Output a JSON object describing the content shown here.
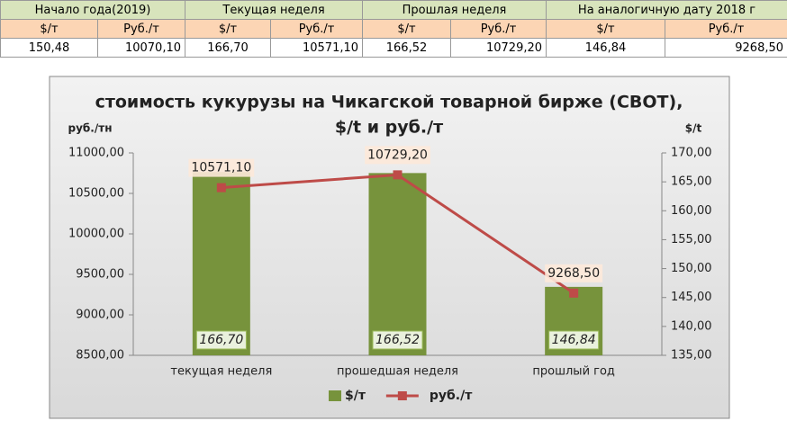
{
  "table": {
    "header": [
      "Начало года(2019)",
      "Текущая неделя",
      "Прошлая неделя",
      "На аналогичную дату 2018 г"
    ],
    "subheader": [
      "$/т",
      "Руб./т",
      "$/т",
      "Руб./т",
      "$/т",
      "Руб./т",
      "$/т",
      "Руб./т"
    ],
    "rows": [
      [
        "150,48",
        "10070,10",
        "166,70",
        "10571,10",
        "166,52",
        "10729,20",
        "146,84",
        "9268,50"
      ]
    ]
  },
  "chart_data": {
    "type": "bar",
    "title": "стоимость кукурузы на Чикагской товарной бирже (CBOT), $/t и руб./т",
    "y_label": "руб./тн",
    "y2_label": "$/t",
    "categories": [
      "текущая неделя",
      "прошедшая неделя",
      "прошлый год"
    ],
    "series": [
      {
        "name": "$/т",
        "type": "bar",
        "axis": "y2",
        "color": "#77933c",
        "values": [
          166.7,
          166.52,
          146.84
        ],
        "value_labels": [
          "166,70",
          "166,52",
          "146,84"
        ]
      },
      {
        "name": "руб./т",
        "type": "line",
        "axis": "y",
        "color": "#be4b48",
        "values": [
          10571.1,
          10729.2,
          9268.5
        ],
        "value_labels": [
          "10571,10",
          "10729,20",
          "9268,50"
        ]
      }
    ],
    "ylim": [
      8500,
      11000
    ],
    "yticks": [
      {
        "value": 8500,
        "label": "8500,00"
      },
      {
        "value": 9000,
        "label": "9000,00"
      },
      {
        "value": 9500,
        "label": "9500,00"
      },
      {
        "value": 10000,
        "label": "10000,00"
      },
      {
        "value": 10500,
        "label": "10500,00"
      },
      {
        "value": 11000,
        "label": "11000,00"
      }
    ],
    "y2lim": [
      135,
      170
    ],
    "y2ticks": [
      {
        "value": 135,
        "label": "135,00"
      },
      {
        "value": 140,
        "label": "140,00"
      },
      {
        "value": 145,
        "label": "145,00"
      },
      {
        "value": 150,
        "label": "150,00"
      },
      {
        "value": 155,
        "label": "155,00"
      },
      {
        "value": 160,
        "label": "160,00"
      },
      {
        "value": 165,
        "label": "165,00"
      },
      {
        "value": 170,
        "label": "170,00"
      }
    ],
    "grid": false,
    "legend": "bottom"
  }
}
